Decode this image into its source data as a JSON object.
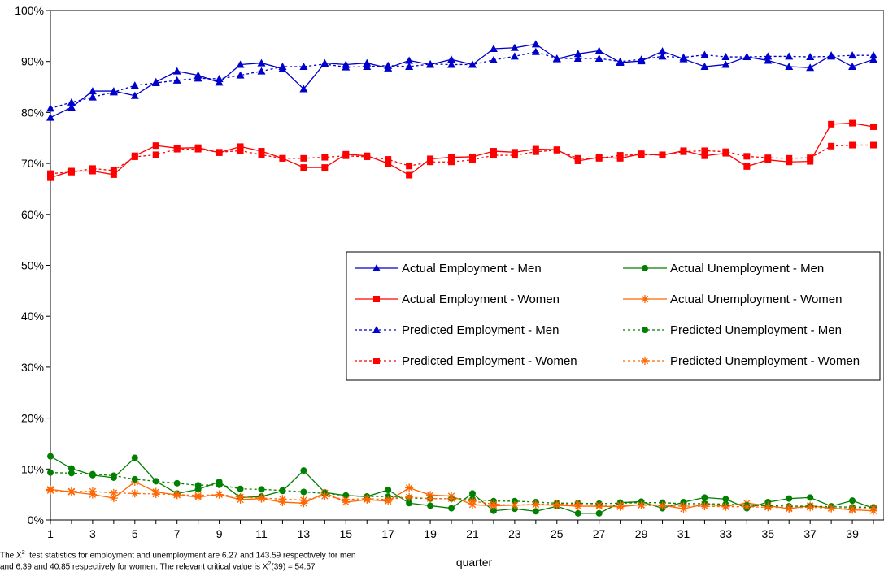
{
  "chart_data": {
    "type": "line",
    "xlabel": "quarter",
    "ylabel": "",
    "title": "",
    "x": [
      1,
      2,
      3,
      4,
      5,
      6,
      7,
      8,
      9,
      10,
      11,
      12,
      13,
      14,
      15,
      16,
      17,
      18,
      19,
      20,
      21,
      22,
      23,
      24,
      25,
      26,
      27,
      28,
      29,
      30,
      31,
      32,
      33,
      34,
      35,
      36,
      37,
      38,
      39,
      40
    ],
    "x_tick_labels": [
      "1",
      "3",
      "5",
      "7",
      "9",
      "11",
      "13",
      "15",
      "17",
      "19",
      "21",
      "23",
      "25",
      "27",
      "29",
      "31",
      "33",
      "35",
      "37",
      "39"
    ],
    "y_tick_labels": [
      "0%",
      "10%",
      "20%",
      "30%",
      "40%",
      "50%",
      "60%",
      "70%",
      "80%",
      "90%",
      "100%"
    ],
    "ylim": [
      0,
      100
    ],
    "grid": false,
    "legend_placement": "center-right",
    "series": [
      {
        "name": "Actual Employment - Men",
        "color": "#0000cc",
        "dash": "solid",
        "marker": "triangle",
        "values": [
          79,
          81,
          84.2,
          84.2,
          83.3,
          86,
          88.1,
          87.3,
          85.9,
          89.4,
          89.7,
          88.6,
          84.6,
          89.7,
          89.4,
          89.7,
          88.7,
          90.2,
          89.4,
          90.4,
          89.4,
          92.5,
          92.7,
          93.4,
          90.5,
          91.5,
          92.1,
          89.8,
          90.1,
          92,
          90.5,
          89,
          89.4,
          90.9,
          90.2,
          89,
          88.8,
          91.2,
          89,
          90.4
        ]
      },
      {
        "name": "Actual Employment - Women",
        "color": "#ff0000",
        "dash": "solid",
        "marker": "square",
        "values": [
          67.2,
          68.5,
          68.5,
          67.8,
          71.5,
          73.5,
          73,
          73.1,
          72.1,
          73.3,
          72.4,
          71,
          69.2,
          69.2,
          71.8,
          71.5,
          70,
          67.7,
          70.9,
          71.2,
          71.3,
          72.4,
          72.2,
          72.8,
          72.7,
          70.5,
          71.2,
          71,
          71.9,
          71.6,
          72.5,
          71.5,
          72,
          69.4,
          70.7,
          70.3,
          70.4,
          77.7,
          77.9,
          77.2
        ]
      },
      {
        "name": "Predicted Employment - Men",
        "color": "#0000cc",
        "dash": "dotted",
        "marker": "triangle",
        "values": [
          80.8,
          82,
          83,
          84,
          85.3,
          85.8,
          86.3,
          86.7,
          86.6,
          87.3,
          88.1,
          89,
          89,
          89.5,
          88.9,
          89,
          89.2,
          89,
          89.5,
          89.4,
          89.4,
          90.3,
          91,
          91.9,
          90.6,
          90.6,
          90.6,
          90,
          90.4,
          91,
          90.8,
          91.3,
          90.9,
          90.9,
          91,
          91,
          90.9,
          91,
          91.2,
          91.2
        ]
      },
      {
        "name": "Predicted Employment - Women",
        "color": "#ff0000",
        "dash": "dotted",
        "marker": "square",
        "values": [
          68,
          68.3,
          69,
          68.6,
          71.3,
          71.7,
          72.8,
          72.8,
          72.2,
          72.5,
          71.7,
          71,
          71,
          71.2,
          71.5,
          71.3,
          70.8,
          69.5,
          70.3,
          70.3,
          70.7,
          71.6,
          71.6,
          72.3,
          72.6,
          71,
          71,
          71.6,
          71.7,
          71.7,
          72.3,
          72.5,
          72.3,
          71.4,
          71.1,
          71,
          71.1,
          73.4,
          73.6,
          73.6
        ]
      },
      {
        "name": "Actual Unemployment - Men",
        "color": "#008000",
        "dash": "solid",
        "marker": "circle",
        "values": [
          12.5,
          10.1,
          8.8,
          8.3,
          12.2,
          7.6,
          5.2,
          6,
          7.5,
          4.4,
          4.6,
          5.7,
          9.7,
          5.4,
          4.8,
          4.6,
          5.9,
          3.3,
          2.8,
          2.3,
          5.2,
          1.8,
          2.2,
          1.7,
          2.7,
          1.3,
          1.3,
          3.4,
          3.6,
          2.3,
          3.5,
          4.4,
          4.1,
          2.3,
          3.5,
          4.2,
          4.4,
          2.7,
          3.8,
          2.3
        ]
      },
      {
        "name": "Actual Unemployment - Women",
        "color": "#ff6600",
        "dash": "solid",
        "marker": "asterisk",
        "values": [
          6,
          5.5,
          5,
          4.3,
          7.5,
          5.5,
          4.9,
          4.5,
          5,
          4,
          4.2,
          3.5,
          3.3,
          5.3,
          3.5,
          4,
          3.7,
          6.3,
          4.9,
          4.7,
          3,
          2.8,
          2.9,
          3,
          2.9,
          2.7,
          2.7,
          2.6,
          3,
          2.9,
          2.2,
          3.1,
          2.7,
          3.3,
          2.8,
          2.2,
          2.8,
          2.3,
          2,
          1.8
        ]
      },
      {
        "name": "Predicted Unemployment - Men",
        "color": "#008000",
        "dash": "dotted",
        "marker": "circle",
        "values": [
          9.3,
          9.2,
          9,
          8.7,
          8,
          7.6,
          7.2,
          6.8,
          6.9,
          6.1,
          6,
          5.8,
          5.5,
          5.2,
          4.8,
          4.6,
          4.6,
          4.3,
          4.2,
          4.2,
          4.1,
          3.7,
          3.7,
          3.5,
          3.3,
          3.3,
          3.2,
          3.3,
          3.4,
          3.4,
          3.2,
          3.2,
          3.1,
          2.9,
          2.8,
          2.7,
          2.7,
          2.6,
          2.5,
          2.5
        ]
      },
      {
        "name": "Predicted Unemployment - Women",
        "color": "#ff6600",
        "dash": "dotted",
        "marker": "asterisk",
        "values": [
          5.8,
          5.6,
          5.6,
          5.3,
          5.2,
          5.1,
          5,
          4.8,
          5,
          4.5,
          4.3,
          4.1,
          3.9,
          4.7,
          4,
          4.2,
          4,
          4.5,
          4.2,
          4.2,
          3.7,
          3.1,
          2.9,
          3.1,
          3.1,
          3.1,
          2.9,
          2.9,
          2.9,
          2.8,
          2.7,
          2.7,
          2.6,
          2.6,
          2.5,
          2.4,
          2.5,
          2.3,
          2.2,
          2.3
        ]
      }
    ],
    "legend_order": [
      0,
      4,
      1,
      5,
      2,
      6,
      3,
      7
    ]
  },
  "footnote": {
    "line1_pre": "The X",
    "line1_sup": "2",
    "line1_post": "  test statistics for employment and unemployment are 6.27 and 143.59 respectively for men",
    "line2_pre": "and 6.39 and 40.85 respectively for women. The relevant critical value is X",
    "line2_sup": "2",
    "line2_post": "(39) = 54.57"
  }
}
